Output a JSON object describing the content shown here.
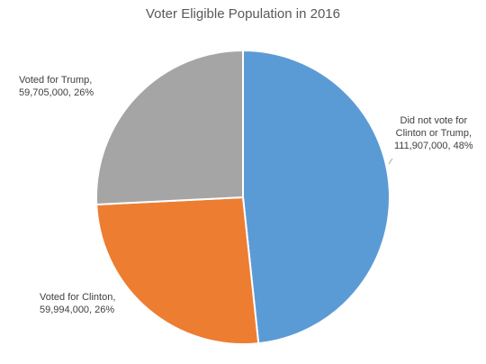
{
  "chart_data": {
    "type": "pie",
    "title": "Voter Eligible Population in 2016",
    "start_angle_deg": 0,
    "direction": "clockwise",
    "slices": [
      {
        "label": "Did not vote for Clinton or Trump",
        "value": 111907000,
        "percent": 48,
        "color": "#5b9bd5",
        "label_lines": [
          "Did not vote for",
          "Clinton or Trump,",
          "111,907,000, 48%"
        ]
      },
      {
        "label": "Voted for Clinton",
        "value": 59994000,
        "percent": 26,
        "color": "#ed7d31",
        "label_lines": [
          "Voted for Clinton,",
          "59,994,000, 26%"
        ]
      },
      {
        "label": "Voted for Trump",
        "value": 59705000,
        "percent": 26,
        "color": "#a5a5a5",
        "label_lines": [
          "Voted for Trump,",
          "59,705,000, 26%"
        ]
      }
    ]
  }
}
